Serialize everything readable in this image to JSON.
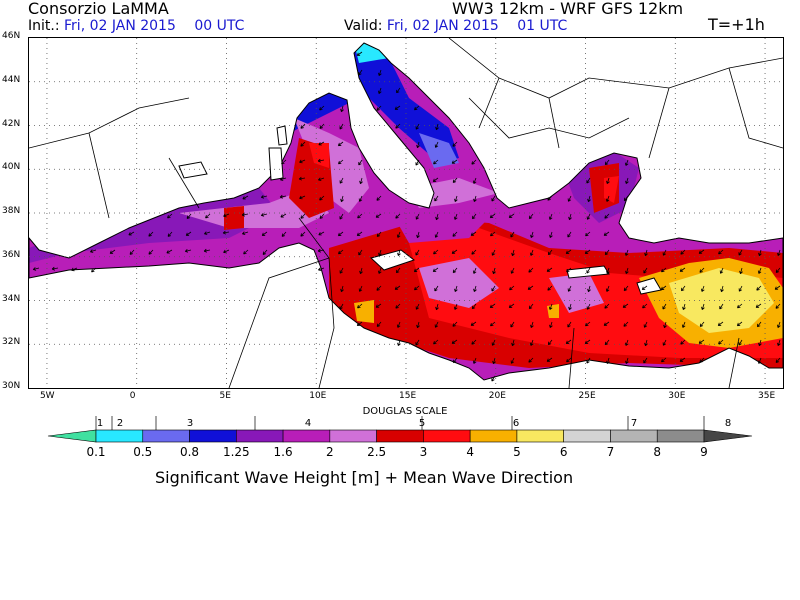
{
  "header": {
    "producer": "Consorzio LaMMA",
    "model": "WW3 12km - WRF GFS 12km",
    "init_label": "Init.:",
    "init_value": "Fri, 02 JAN 2015",
    "init_hour": "00 UTC",
    "valid_label": "Valid:",
    "valid_value": "Fri, 02 JAN 2015",
    "valid_hour": "01 UTC",
    "lead": "T=+1h"
  },
  "map": {
    "lat_ticks": [
      "46N",
      "44N",
      "42N",
      "40N",
      "38N",
      "36N",
      "34N",
      "32N",
      "30N"
    ],
    "lon_ticks": [
      "5W",
      "0",
      "5E",
      "10E",
      "15E",
      "20E",
      "25E",
      "30E",
      "35E"
    ],
    "extent": {
      "lon_min": -6,
      "lon_max": 36,
      "lat_min": 30,
      "lat_max": 46
    },
    "colors": {
      "land": "#ffffff",
      "border": "#000000",
      "grid": "#555555",
      "arrow": "#000000"
    }
  },
  "legend": {
    "douglas_title": "DOUGLAS SCALE",
    "douglas": [
      "1",
      "2",
      "3",
      "4",
      "5",
      "6",
      "7",
      "8"
    ],
    "bins": [
      {
        "color": "#40e0a0"
      },
      {
        "color": "#28e8ff"
      },
      {
        "color": "#6a6af0"
      },
      {
        "color": "#1010d8"
      },
      {
        "color": "#8818b8"
      },
      {
        "color": "#b81eb8"
      },
      {
        "color": "#d070d8"
      },
      {
        "color": "#d80000"
      },
      {
        "color": "#ff0c10"
      },
      {
        "color": "#f8b000"
      },
      {
        "color": "#f8e860"
      },
      {
        "color": "#d4d4d4"
      },
      {
        "color": "#b4b4b4"
      },
      {
        "color": "#8c8c8c"
      },
      {
        "color": "#464646"
      }
    ],
    "values": [
      "0.1",
      "0.5",
      "0.8",
      "1.25",
      "1.6",
      "2",
      "2.5",
      "3",
      "4",
      "5",
      "6",
      "7",
      "8",
      "9"
    ],
    "caption": "Significant Wave Height [m] + Mean Wave Direction"
  }
}
